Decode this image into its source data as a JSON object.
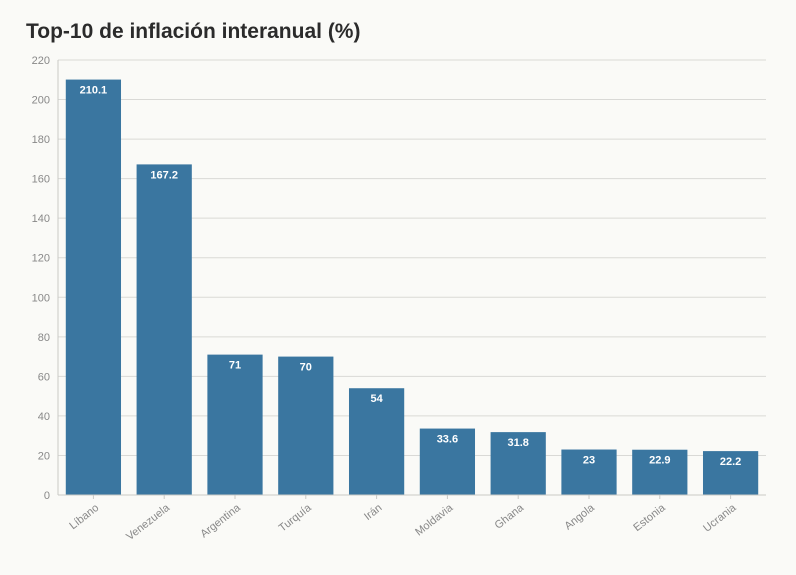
{
  "chart": {
    "type": "bar",
    "title": "Top-10 de inflación interanual (%)",
    "title_fontsize": 21,
    "title_color": "#2b2b2b",
    "background_color": "#fafaf7",
    "grid_color": "#d9d9d6",
    "axis_color": "#c9c9c6",
    "tick_label_color": "#888888",
    "tick_label_fontsize": 11,
    "bar_color": "#3a76a0",
    "bar_label_color": "#ffffff",
    "bar_label_fontsize": 11,
    "bar_label_fontweight": 700,
    "x_label_fontsize": 11,
    "x_label_color": "#888888",
    "x_label_rotation_deg": -38,
    "ylim": [
      0,
      220
    ],
    "ytick_step": 20,
    "bar_width_ratio": 0.78,
    "categories": [
      "Líbano",
      "Venezuela",
      "Argentina",
      "Turquía",
      "Irán",
      "Moldavia",
      "Ghana",
      "Angola",
      "Estonia",
      "Ucrania"
    ],
    "values": [
      210.1,
      167.2,
      71,
      70,
      54,
      33.6,
      31.8,
      23,
      22.9,
      22.2
    ],
    "value_labels": [
      "210.1",
      "167.2",
      "71",
      "70",
      "54",
      "33.6",
      "31.8",
      "23",
      "22.9",
      "22.2"
    ]
  }
}
